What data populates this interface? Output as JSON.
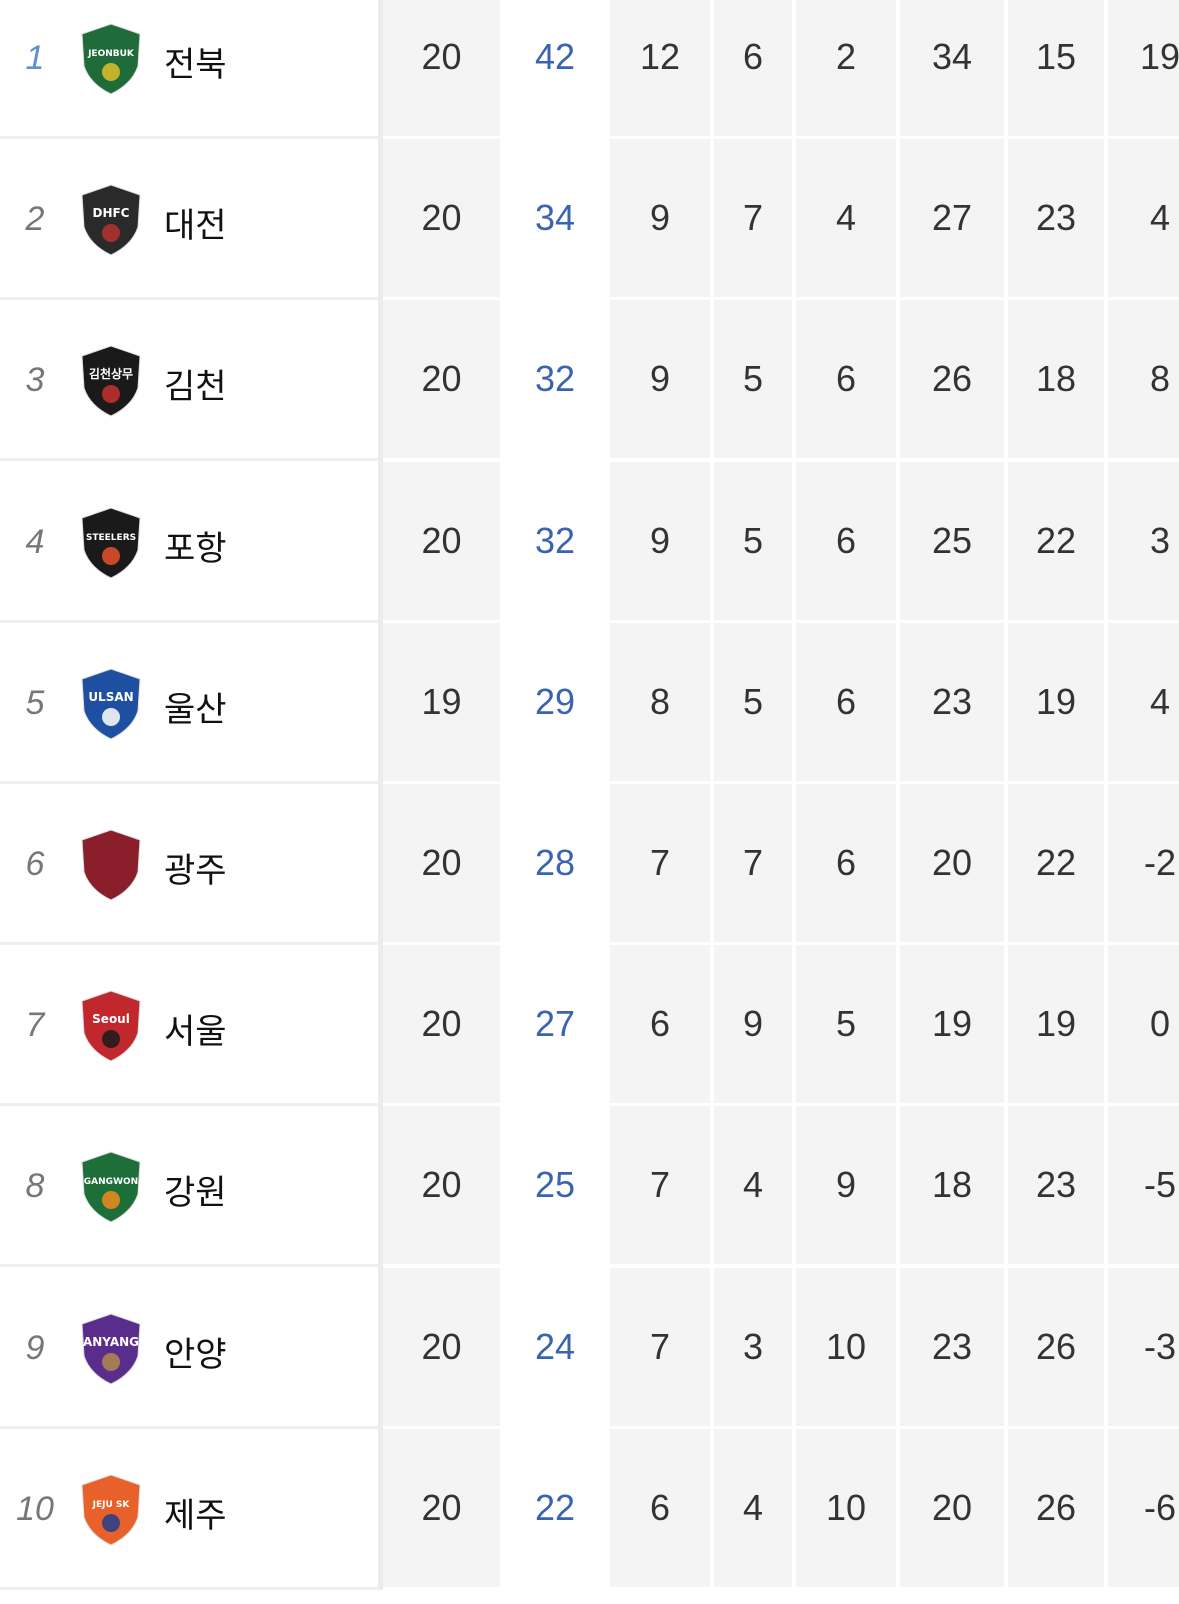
{
  "colors": {
    "rank_leader": "#5b8fd6",
    "rank": "#777777",
    "points": "#3a64b0",
    "cell_bg": "#f4f4f4"
  },
  "rows": [
    {
      "rank": "1",
      "team": "전북",
      "logo_text": "JEONBUK",
      "logo_color": "#1f6b3a",
      "accent": "#e0c02a",
      "stats": [
        "20",
        "42",
        "12",
        "6",
        "2",
        "34",
        "15",
        "19"
      ]
    },
    {
      "rank": "2",
      "team": "대전",
      "logo_text": "DHFC",
      "logo_color": "#2a2a2a",
      "accent": "#b5322f",
      "stats": [
        "20",
        "34",
        "9",
        "7",
        "4",
        "27",
        "23",
        "4"
      ]
    },
    {
      "rank": "3",
      "team": "김천",
      "logo_text": "김천상무",
      "logo_color": "#1a1a1a",
      "accent": "#c8312f",
      "stats": [
        "20",
        "32",
        "9",
        "5",
        "6",
        "26",
        "18",
        "8"
      ]
    },
    {
      "rank": "4",
      "team": "포항",
      "logo_text": "STEELERS",
      "logo_color": "#1a1a1a",
      "accent": "#e8522a",
      "stats": [
        "20",
        "32",
        "9",
        "5",
        "6",
        "25",
        "22",
        "3"
      ]
    },
    {
      "rank": "5",
      "team": "울산",
      "logo_text": "ULSAN",
      "logo_color": "#1f4fa0",
      "accent": "#ffffff",
      "stats": [
        "19",
        "29",
        "8",
        "5",
        "6",
        "23",
        "19",
        "4"
      ]
    },
    {
      "rank": "6",
      "team": "광주",
      "logo_text": "",
      "logo_color": "#8b1e2b",
      "accent": "#8b1e2b",
      "stats": [
        "20",
        "28",
        "7",
        "7",
        "6",
        "20",
        "22",
        "-2"
      ]
    },
    {
      "rank": "7",
      "team": "서울",
      "logo_text": "Seoul",
      "logo_color": "#c0282d",
      "accent": "#1a1a1a",
      "stats": [
        "20",
        "27",
        "6",
        "9",
        "5",
        "19",
        "19",
        "0"
      ]
    },
    {
      "rank": "8",
      "team": "강원",
      "logo_text": "GANGWON",
      "logo_color": "#1e6e3a",
      "accent": "#f08c1e",
      "stats": [
        "20",
        "25",
        "7",
        "4",
        "9",
        "18",
        "23",
        "-5"
      ]
    },
    {
      "rank": "9",
      "team": "안양",
      "logo_text": "ANYANG",
      "logo_color": "#5a2d8c",
      "accent": "#b08a4a",
      "stats": [
        "20",
        "24",
        "7",
        "3",
        "10",
        "23",
        "26",
        "-3"
      ]
    },
    {
      "rank": "10",
      "team": "제주",
      "logo_text": "JEJU SK",
      "logo_color": "#e8602a",
      "accent": "#1f3f8a",
      "stats": [
        "20",
        "22",
        "6",
        "4",
        "10",
        "20",
        "26",
        "-6"
      ]
    }
  ]
}
